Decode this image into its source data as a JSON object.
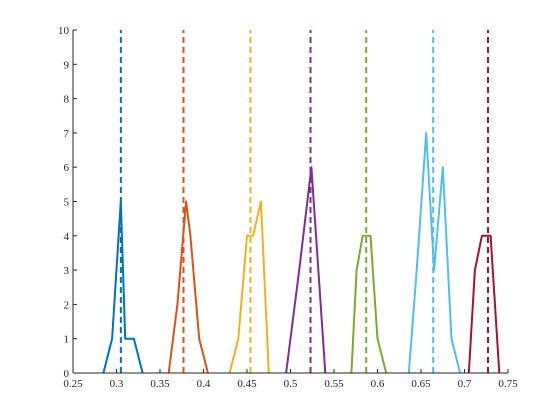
{
  "chart_data": {
    "type": "line",
    "title": "",
    "xlabel": "",
    "ylabel": "",
    "xlim": [
      0.25,
      0.75
    ],
    "ylim": [
      0,
      10
    ],
    "grid": false,
    "box": false,
    "x_ticks": [
      "0.25",
      "0.3",
      "0.35",
      "0.4",
      "0.45",
      "0.5",
      "0.55",
      "0.6",
      "0.65",
      "0.7",
      "0.75"
    ],
    "x_tick_values": [
      0.25,
      0.3,
      0.35,
      0.4,
      0.45,
      0.5,
      0.55,
      0.6,
      0.65,
      0.7,
      0.75
    ],
    "y_ticks": [
      "0",
      "1",
      "2",
      "3",
      "4",
      "5",
      "6",
      "7",
      "8",
      "9",
      "10"
    ],
    "y_tick_values": [
      0,
      1,
      2,
      3,
      4,
      5,
      6,
      7,
      8,
      9,
      10
    ],
    "series": [
      {
        "color": "#0072BD",
        "mean": 0.305,
        "x": [
          0.285,
          0.295,
          0.305,
          0.31,
          0.32,
          0.33
        ],
        "y": [
          0,
          1,
          5,
          1,
          1,
          0
        ]
      },
      {
        "color": "#D95319",
        "mean": 0.377,
        "x": [
          0.36,
          0.37,
          0.38,
          0.385,
          0.395,
          0.405
        ],
        "y": [
          0,
          2,
          5,
          4,
          1,
          0
        ]
      },
      {
        "color": "#EDB120",
        "mean": 0.454,
        "x": [
          0.43,
          0.44,
          0.45,
          0.457,
          0.466,
          0.475
        ],
        "y": [
          0,
          1,
          4,
          4,
          5,
          0
        ]
      },
      {
        "color": "#7E2F8E",
        "mean": 0.523,
        "x": [
          0.495,
          0.51,
          0.524,
          0.54
        ],
        "y": [
          0,
          3,
          6,
          0
        ]
      },
      {
        "color": "#77AC30",
        "mean": 0.587,
        "x": [
          0.57,
          0.576,
          0.583,
          0.592,
          0.6,
          0.61
        ],
        "y": [
          0,
          3,
          4,
          4,
          1,
          0
        ]
      },
      {
        "color": "#4DBEEE",
        "mean": 0.664,
        "x": [
          0.636,
          0.645,
          0.656,
          0.665,
          0.675,
          0.685,
          0.695
        ],
        "y": [
          0,
          3,
          7,
          3,
          6,
          1,
          0
        ]
      },
      {
        "color": "#A2142F",
        "mean": 0.727,
        "x": [
          0.705,
          0.712,
          0.72,
          0.73,
          0.74
        ],
        "y": [
          0,
          3,
          4,
          4,
          0
        ]
      }
    ]
  }
}
